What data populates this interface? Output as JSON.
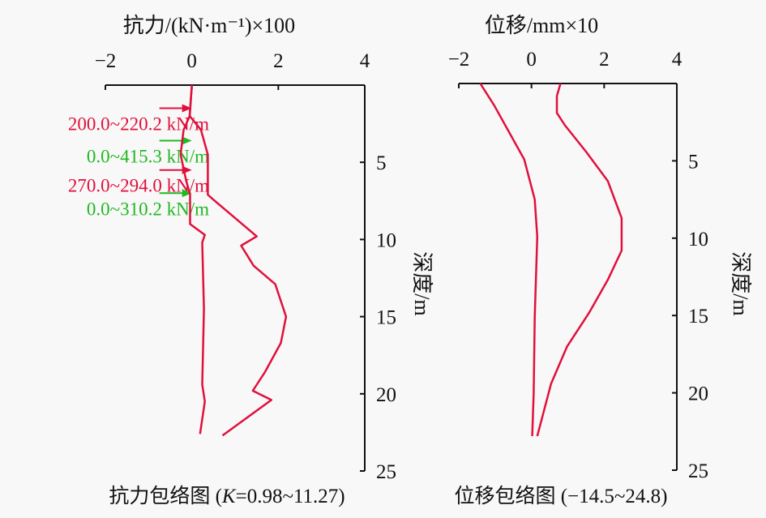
{
  "chart_data": [
    {
      "type": "line",
      "title": "抗力/(kN·m⁻¹)×100",
      "caption": "抗力包络图 (K=0.98~11.27)",
      "caption_parts": [
        "抗力包络图 (",
        "K",
        "=0.98~11.27)"
      ],
      "xlabel": "抗力/(kN·m⁻¹)×100",
      "ylabel": "深度/m",
      "xlim": [
        -2,
        4
      ],
      "ylim": [
        0,
        25
      ],
      "y_inverted": true,
      "x_ticks": [
        "−2",
        "0",
        "2",
        "4"
      ],
      "y_ticks": [
        "5",
        "10",
        "15",
        "20",
        "25"
      ],
      "line_color": "#e0103c",
      "series": [
        {
          "points": [
            [
              0,
              0
            ],
            [
              -0.05,
              2.0
            ],
            [
              -0.19,
              2.9
            ],
            [
              -0.26,
              4.5
            ],
            [
              -0.13,
              6.2
            ],
            [
              -0.04,
              7.1
            ],
            [
              -0.04,
              9.0
            ],
            [
              0.3,
              9.7
            ],
            [
              0.24,
              10.2
            ],
            [
              0.28,
              14.5
            ],
            [
              0.24,
              19.4
            ],
            [
              0.3,
              20.5
            ],
            [
              0.19,
              22.6
            ]
          ]
        },
        {
          "points": [
            [
              0,
              0
            ],
            [
              -0.05,
              2.0
            ],
            [
              0.21,
              2.9
            ],
            [
              0.37,
              4.5
            ],
            [
              0.37,
              7.1
            ],
            [
              0.49,
              7.4
            ],
            [
              1.5,
              9.8
            ],
            [
              1.14,
              10.4
            ],
            [
              1.43,
              11.7
            ],
            [
              1.93,
              12.9
            ],
            [
              2.18,
              15.0
            ],
            [
              2.06,
              16.7
            ],
            [
              1.69,
              18.6
            ],
            [
              1.41,
              19.8
            ],
            [
              1.84,
              20.4
            ],
            [
              0.71,
              22.7
            ]
          ]
        }
      ],
      "annotations": [
        {
          "text": "200.0~220.2 kN/m",
          "color": "#e0103c",
          "depth": 1.5
        },
        {
          "text": "0.0~415.3 kN/m",
          "color": "#22b822",
          "depth": 3.6
        },
        {
          "text": "270.0~294.0 kN/m",
          "color": "#e0103c",
          "depth": 5.5
        },
        {
          "text": "0.0~310.2 kN/m",
          "color": "#22b822",
          "depth": 7.0
        }
      ]
    },
    {
      "type": "line",
      "title": "位移/mm×10",
      "caption": "位移包络图 (−14.5~24.8)",
      "xlabel": "位移/mm×10",
      "ylabel": "深度/m",
      "xlim": [
        -2,
        4
      ],
      "ylim": [
        0,
        25
      ],
      "y_inverted": true,
      "x_ticks": [
        "−2",
        "0",
        "2",
        "4"
      ],
      "y_ticks": [
        "5",
        "10",
        "15",
        "20",
        "25"
      ],
      "line_color": "#e0103c",
      "series": [
        {
          "points": [
            [
              -1.41,
              0
            ],
            [
              -1.03,
              1.4
            ],
            [
              -0.58,
              3.3
            ],
            [
              -0.2,
              4.9
            ],
            [
              0.09,
              7.5
            ],
            [
              0.16,
              9.9
            ],
            [
              0.09,
              15.1
            ],
            [
              0.06,
              20.0
            ],
            [
              0.02,
              22.8
            ]
          ]
        },
        {
          "points": [
            [
              0.8,
              0
            ],
            [
              0.7,
              0.8
            ],
            [
              0.7,
              1.9
            ],
            [
              0.92,
              2.7
            ],
            [
              1.5,
              4.4
            ],
            [
              2.1,
              6.3
            ],
            [
              2.48,
              8.7
            ],
            [
              2.48,
              10.8
            ],
            [
              2.1,
              12.7
            ],
            [
              1.59,
              14.8
            ],
            [
              0.98,
              17.0
            ],
            [
              0.54,
              19.4
            ],
            [
              0.16,
              22.8
            ]
          ]
        }
      ]
    }
  ]
}
